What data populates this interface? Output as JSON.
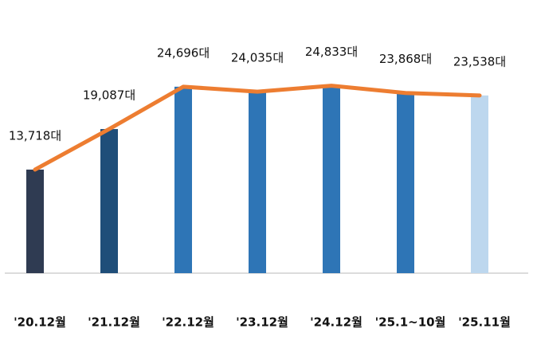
{
  "chart_data": {
    "type": "combo",
    "categories": [
      "'20.12월",
      "'21.12월",
      "'22.12월",
      "'23.12월",
      "'24.12월",
      "'25.1~10월",
      "'25.11월"
    ],
    "values": [
      13718,
      19087,
      24696,
      24035,
      24833,
      23868,
      23538
    ],
    "value_labels": [
      "13,718대",
      "19,087대",
      "24,696대",
      "24,035대",
      "24,833대",
      "23,868대",
      "23,538대"
    ],
    "colors": [
      "#2f3b52",
      "#1f4e79",
      "#2e75b6",
      "#2e75b6",
      "#2e75b6",
      "#2e75b6",
      "#bdd7ee"
    ],
    "line_color": "#ed7d31"
  }
}
